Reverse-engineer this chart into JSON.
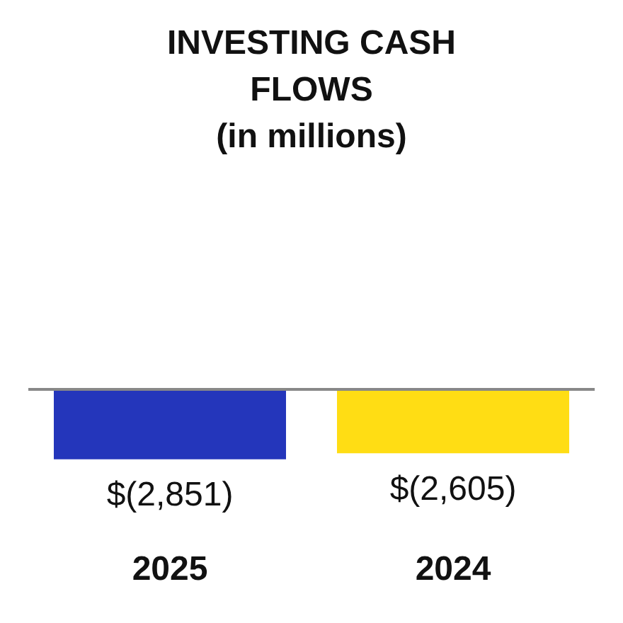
{
  "chart_data": {
    "type": "bar",
    "title": "INVESTING CASH FLOWS",
    "subtitle": "(in millions)",
    "categories": [
      "2025",
      "2024"
    ],
    "values": [
      -2851,
      -2605
    ],
    "colors": [
      "#2436bb",
      "#ffdd14"
    ],
    "value_labels": [
      "$(2,851)",
      "$(2,605)"
    ],
    "ylim": [
      -3000,
      0
    ]
  }
}
